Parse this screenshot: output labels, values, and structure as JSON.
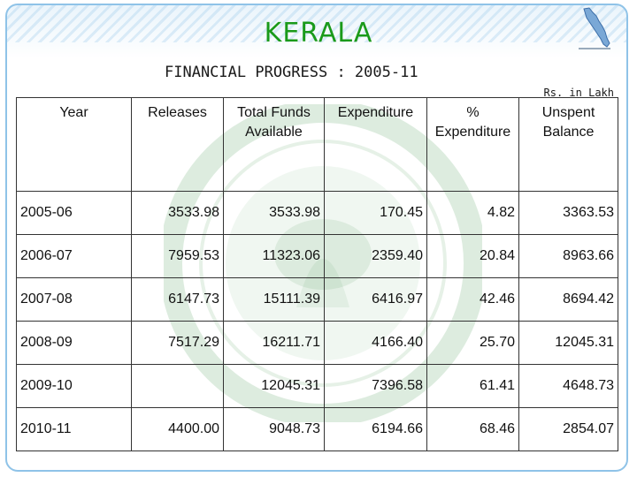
{
  "header": {
    "title": "KERALA",
    "subtitle": "FINANCIAL PROGRESS : 2005-11",
    "unit_note": "Rs. in Lakh"
  },
  "table": {
    "columns": [
      [
        "Year"
      ],
      [
        "Releases"
      ],
      [
        "Total Funds",
        "Available"
      ],
      [
        "Expenditure"
      ],
      [
        "%",
        "Expenditure"
      ],
      [
        "Unspent",
        "Balance"
      ]
    ],
    "rows": [
      [
        "2005-06",
        "3533.98",
        "3533.98",
        "170.45",
        "4.82",
        "3363.53"
      ],
      [
        "2006-07",
        "7959.53",
        "11323.06",
        "2359.40",
        "20.84",
        "8963.66"
      ],
      [
        "2007-08",
        "6147.73",
        "15111.39",
        "6416.97",
        "42.46",
        "8694.42"
      ],
      [
        "2008-09",
        "7517.29",
        "16211.71",
        "4166.40",
        "25.70",
        "12045.31"
      ],
      [
        "2009-10",
        "",
        "12045.31",
        "7396.58",
        "61.41",
        "4648.73"
      ],
      [
        "2010-11",
        "4400.00",
        "9048.73",
        "6194.66",
        "68.46",
        "2854.07"
      ]
    ]
  },
  "colors": {
    "title": "#1a9a1a",
    "border_accent": "#8fc3e8",
    "watermark": "#2e8b3a"
  },
  "icons": {
    "logo": "kerala-map-icon",
    "watermark": "mission-seal-icon"
  }
}
